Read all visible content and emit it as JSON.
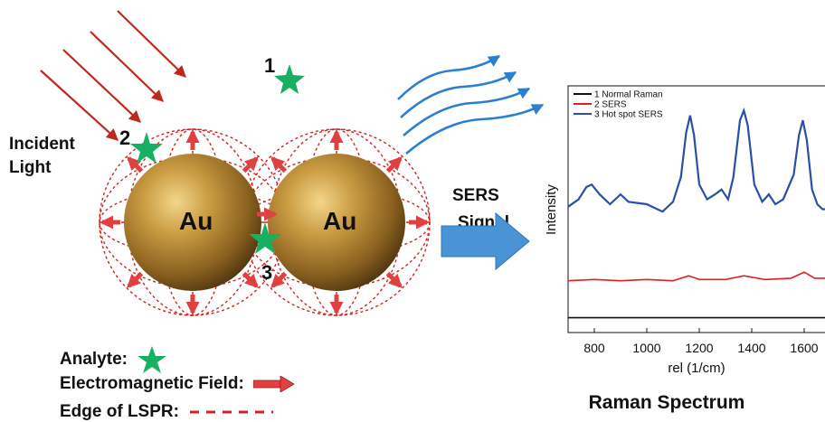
{
  "left_panel": {
    "incident_light": [
      "Incident",
      "Light"
    ],
    "particle_label": "Au",
    "positions": [
      "1",
      "2",
      "3"
    ],
    "signal": [
      "SERS",
      "Signal"
    ]
  },
  "legend": {
    "analyte": "Analyte:",
    "field": "Electromagnetic Field:",
    "edge": "Edge of LSPR:"
  },
  "colors": {
    "light": "#c0281e",
    "star": "#16b060",
    "field_arrow": "#e04040",
    "lspr_grid": "#d42020",
    "wave": "#2a7fd0",
    "big_arrow": "#4a94d6",
    "gold": "#b7892f"
  },
  "icons": [
    "star-icon",
    "arrow-icon",
    "dashed-line-icon"
  ],
  "chart_title": "Raman Spectrum",
  "chart_data": {
    "type": "line",
    "xlabel": "rel (1/cm)",
    "ylabel": "Intensity",
    "xlim": [
      700,
      1700
    ],
    "ylim": [
      0,
      10
    ],
    "xticks": [
      800,
      1000,
      1200,
      1400,
      1600
    ],
    "legend_position": "top-left",
    "series": [
      {
        "name": "1 Normal Raman",
        "color": "#111111",
        "x": [
          700,
          1700
        ],
        "y": [
          0.6,
          0.6
        ]
      },
      {
        "name": "2 SERS",
        "color": "#e02020",
        "x": [
          700,
          800,
          900,
          1000,
          1100,
          1160,
          1200,
          1300,
          1370,
          1450,
          1550,
          1600,
          1640,
          1700
        ],
        "y": [
          2.1,
          2.15,
          2.1,
          2.15,
          2.1,
          2.3,
          2.15,
          2.15,
          2.3,
          2.15,
          2.2,
          2.45,
          2.2,
          2.2
        ]
      },
      {
        "name": "3 Hot spot SERS",
        "color": "#2a4fa8",
        "x": [
          700,
          740,
          770,
          790,
          820,
          860,
          900,
          930,
          1000,
          1060,
          1100,
          1130,
          1150,
          1165,
          1180,
          1200,
          1230,
          1260,
          1285,
          1310,
          1330,
          1355,
          1370,
          1385,
          1410,
          1440,
          1465,
          1490,
          1520,
          1560,
          1580,
          1595,
          1610,
          1630,
          1650,
          1670,
          1700
        ],
        "y": [
          5.1,
          5.4,
          5.9,
          6.0,
          5.6,
          5.2,
          5.6,
          5.3,
          5.2,
          4.9,
          5.3,
          6.3,
          8.1,
          8.8,
          8.0,
          6.0,
          5.4,
          5.6,
          5.8,
          5.4,
          6.3,
          8.6,
          9.0,
          8.4,
          6.0,
          5.3,
          5.6,
          5.2,
          5.4,
          6.4,
          8.0,
          8.6,
          7.8,
          5.8,
          5.2,
          5.0,
          5.0
        ]
      }
    ]
  }
}
